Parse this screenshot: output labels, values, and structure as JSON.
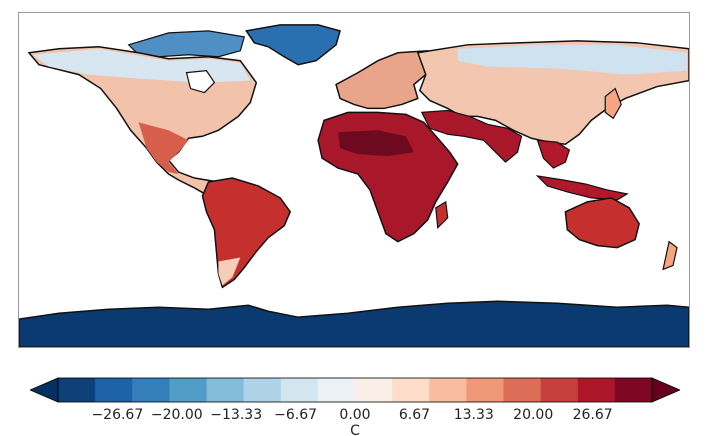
{
  "map": {
    "projection": "equirectangular",
    "variable": "surface temperature",
    "colormap": [
      "#053061",
      "#2166ac",
      "#4393c3",
      "#92c5de",
      "#d1e5f0",
      "#f7f7f7",
      "#fddbc7",
      "#f4a582",
      "#d6604d",
      "#b2182b",
      "#67001f"
    ]
  },
  "colorbar": {
    "min": -33.33,
    "max": 33.33,
    "levels": 16,
    "ticks": [
      "−26.67",
      "−20.00",
      "−13.33",
      "−6.67",
      "0.00",
      "6.67",
      "13.33",
      "20.00",
      "26.67"
    ],
    "tick_values": [
      -26.67,
      -20.0,
      -13.33,
      -6.67,
      0.0,
      6.67,
      13.33,
      20.0,
      26.67
    ],
    "unit": "C"
  }
}
